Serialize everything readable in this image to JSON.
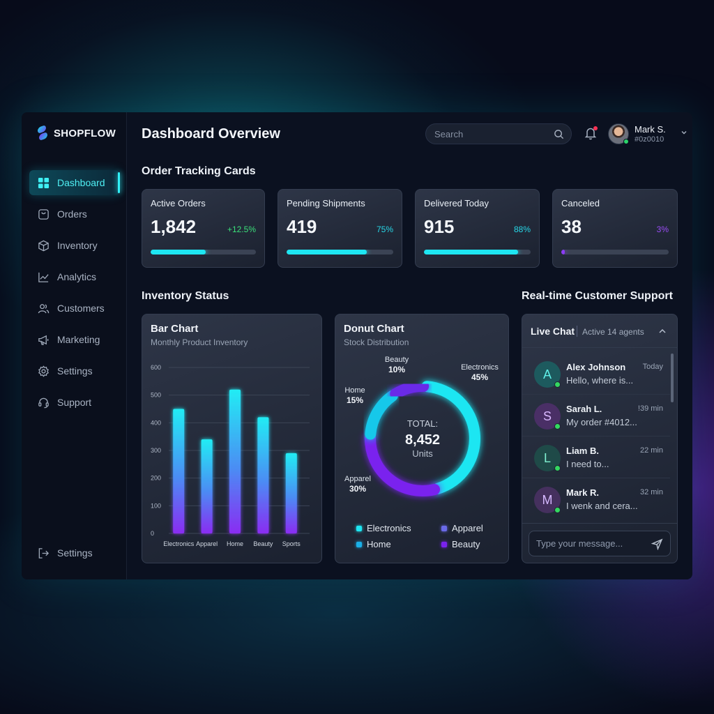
{
  "brand": {
    "name": "SHOPFLOW"
  },
  "sidebar": {
    "items": [
      {
        "label": "Dashboard",
        "icon": "dashboard-icon",
        "active": true
      },
      {
        "label": "Orders",
        "icon": "orders-icon"
      },
      {
        "label": "Inventory",
        "icon": "inventory-icon"
      },
      {
        "label": "Analytics",
        "icon": "analytics-icon"
      },
      {
        "label": "Customers",
        "icon": "customers-icon"
      },
      {
        "label": "Marketing",
        "icon": "marketing-icon"
      },
      {
        "label": "Settings",
        "icon": "settings-icon"
      },
      {
        "label": "Support",
        "icon": "support-icon"
      }
    ],
    "bottom": {
      "label": "Settings",
      "icon": "logout-icon"
    }
  },
  "header": {
    "title": "Dashboard Overview",
    "search": {
      "placeholder": "Search",
      "value": ""
    },
    "user": {
      "name": "Mark S.",
      "sub": "#0z0010"
    }
  },
  "sections": {
    "order_tracking": "Order Tracking Cards",
    "inventory": "Inventory Status",
    "support": "Real-time Customer Support"
  },
  "kpis": [
    {
      "label": "Active Orders",
      "value": "1,842",
      "delta": "+12.5%",
      "progress": 0.52,
      "color": "#1ee6f2",
      "delta_color": "#3be07a"
    },
    {
      "label": "Pending Shipments",
      "value": "419",
      "delta": "75%",
      "progress": 0.75,
      "color": "#1ee6f2",
      "delta_color": "#27d8e8"
    },
    {
      "label": "Delivered Today",
      "value": "915",
      "delta": "88%",
      "progress": 0.88,
      "color": "#1ee6f2",
      "delta_color": "#27d8e8"
    },
    {
      "label": "Canceled",
      "value": "38",
      "delta": "3%",
      "progress": 0.03,
      "color": "#8b3cf5",
      "delta_color": "#9b4df7"
    }
  ],
  "bar_panel": {
    "title": "Bar Chart",
    "subtitle": "Monthly Product Inventory"
  },
  "donut_panel": {
    "title": "Donut Chart",
    "subtitle": "Stock Distribution",
    "center_label": "TOTAL:",
    "center_value": "8,452",
    "center_unit": "Units"
  },
  "chart_data": [
    {
      "type": "bar",
      "title": "Bar Chart",
      "subtitle": "Monthly Product Inventory",
      "categories": [
        "Electronics",
        "Apparel",
        "Home",
        "Beauty",
        "Sports"
      ],
      "values": [
        450,
        340,
        520,
        420,
        290
      ],
      "yticks": [
        0,
        100,
        200,
        300,
        400,
        500,
        600
      ],
      "ylim": [
        0,
        600
      ],
      "grid": true
    },
    {
      "type": "pie",
      "title": "Donut Chart",
      "subtitle": "Stock Distribution",
      "total": "8,452",
      "slices": [
        {
          "name": "Electronics",
          "label": "Electronics",
          "value": 45,
          "display": "45%",
          "color": "#1ee6f2"
        },
        {
          "name": "Apparel",
          "label": "Apparel",
          "value": 30,
          "display": "30%",
          "color": "#7a22ee"
        },
        {
          "name": "Home",
          "label": "Home",
          "value": 15,
          "display": "15%",
          "color": "#18c8ea"
        },
        {
          "name": "Beauty",
          "label": "Beauty",
          "value": 10,
          "display": "10%",
          "color": "#6a2ae8"
        }
      ],
      "legend": [
        {
          "name": "Electronics",
          "color": "#1ee6f2"
        },
        {
          "name": "Apparel",
          "color": "#6a6ae8"
        },
        {
          "name": "Home",
          "color": "#1ab0e8"
        },
        {
          "name": "Beauty",
          "color": "#7a22ee"
        }
      ]
    }
  ],
  "chat": {
    "title": "Live Chat",
    "status": "Active 14 agents",
    "items": [
      {
        "initial": "A",
        "name": "Alex Johnson",
        "message": "Hello, where is...",
        "time": "Today",
        "av_bg": "#1d5a5e",
        "av_fg": "#5ff0e8"
      },
      {
        "initial": "S",
        "name": "Sarah L.",
        "message": "My order #4012...",
        "time": "!39 min",
        "av_bg": "#4a2f66",
        "av_fg": "#d9b8ff"
      },
      {
        "initial": "L",
        "name": "Liam B.",
        "message": "I need to...",
        "time": "22 min",
        "av_bg": "#1f4a48",
        "av_fg": "#7ff0d0"
      },
      {
        "initial": "M",
        "name": "Mark R.",
        "message": "I wenk and cera...",
        "time": "32 min",
        "av_bg": "#45305e",
        "av_fg": "#d6b8ff"
      }
    ],
    "input_placeholder": "Type your message..."
  }
}
